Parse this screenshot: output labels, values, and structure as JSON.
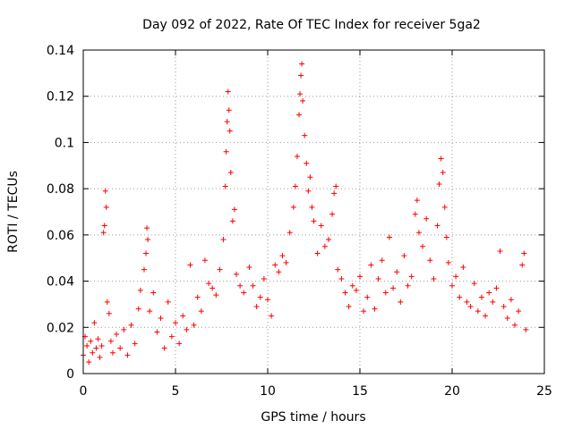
{
  "chart_data": {
    "type": "scatter",
    "title": "Day 092 of 2022, Rate Of TEC Index for receiver 5ga2",
    "xlabel": "GPS time / hours",
    "ylabel": "ROTI / TECUs",
    "xlim": [
      0,
      25
    ],
    "ylim": [
      0,
      0.14
    ],
    "x_ticks": [
      0,
      5,
      10,
      15,
      20,
      25
    ],
    "x_tick_labels": [
      "0",
      "5",
      "10",
      "15",
      "20",
      "25"
    ],
    "y_ticks": [
      0,
      0.02,
      0.04,
      0.06,
      0.08,
      0.1,
      0.12,
      0.14
    ],
    "y_tick_labels": [
      "0",
      "0.02",
      "0.04",
      "0.06",
      "0.08",
      "0.1",
      "0.12",
      "0.14"
    ],
    "grid": true,
    "marker": "+",
    "marker_color": "#ff0000",
    "series": [
      {
        "points": [
          [
            0.0,
            0.008
          ],
          [
            0.1,
            0.016
          ],
          [
            0.2,
            0.012
          ],
          [
            0.3,
            0.005
          ],
          [
            0.4,
            0.014
          ],
          [
            0.5,
            0.009
          ],
          [
            0.6,
            0.022
          ],
          [
            0.7,
            0.011
          ],
          [
            0.8,
            0.015
          ],
          [
            0.9,
            0.007
          ],
          [
            1.0,
            0.012
          ],
          [
            1.1,
            0.061
          ],
          [
            1.15,
            0.064
          ],
          [
            1.2,
            0.079
          ],
          [
            1.25,
            0.072
          ],
          [
            1.3,
            0.031
          ],
          [
            1.4,
            0.026
          ],
          [
            1.5,
            0.014
          ],
          [
            1.6,
            0.009
          ],
          [
            1.8,
            0.017
          ],
          [
            2.0,
            0.011
          ],
          [
            2.2,
            0.019
          ],
          [
            2.4,
            0.008
          ],
          [
            2.6,
            0.021
          ],
          [
            2.8,
            0.013
          ],
          [
            3.0,
            0.028
          ],
          [
            3.1,
            0.036
          ],
          [
            3.3,
            0.045
          ],
          [
            3.4,
            0.052
          ],
          [
            3.45,
            0.063
          ],
          [
            3.5,
            0.058
          ],
          [
            3.6,
            0.027
          ],
          [
            3.8,
            0.035
          ],
          [
            4.0,
            0.018
          ],
          [
            4.2,
            0.024
          ],
          [
            4.4,
            0.011
          ],
          [
            4.6,
            0.031
          ],
          [
            4.8,
            0.016
          ],
          [
            5.0,
            0.022
          ],
          [
            5.2,
            0.013
          ],
          [
            5.4,
            0.025
          ],
          [
            5.6,
            0.019
          ],
          [
            5.8,
            0.047
          ],
          [
            6.0,
            0.021
          ],
          [
            6.2,
            0.033
          ],
          [
            6.4,
            0.027
          ],
          [
            6.6,
            0.049
          ],
          [
            6.8,
            0.039
          ],
          [
            7.0,
            0.037
          ],
          [
            7.2,
            0.034
          ],
          [
            7.4,
            0.045
          ],
          [
            7.6,
            0.058
          ],
          [
            7.7,
            0.081
          ],
          [
            7.75,
            0.096
          ],
          [
            7.8,
            0.109
          ],
          [
            7.85,
            0.122
          ],
          [
            7.9,
            0.114
          ],
          [
            7.95,
            0.105
          ],
          [
            8.0,
            0.087
          ],
          [
            8.1,
            0.066
          ],
          [
            8.2,
            0.071
          ],
          [
            8.3,
            0.043
          ],
          [
            8.5,
            0.038
          ],
          [
            8.7,
            0.035
          ],
          [
            9.0,
            0.046
          ],
          [
            9.2,
            0.038
          ],
          [
            9.4,
            0.029
          ],
          [
            9.6,
            0.033
          ],
          [
            9.8,
            0.041
          ],
          [
            10.0,
            0.032
          ],
          [
            10.2,
            0.025
          ],
          [
            10.4,
            0.047
          ],
          [
            10.6,
            0.044
          ],
          [
            10.8,
            0.051
          ],
          [
            11.0,
            0.048
          ],
          [
            11.2,
            0.061
          ],
          [
            11.4,
            0.072
          ],
          [
            11.5,
            0.081
          ],
          [
            11.6,
            0.094
          ],
          [
            11.7,
            0.112
          ],
          [
            11.75,
            0.121
          ],
          [
            11.8,
            0.129
          ],
          [
            11.85,
            0.134
          ],
          [
            11.9,
            0.118
          ],
          [
            12.0,
            0.103
          ],
          [
            12.1,
            0.091
          ],
          [
            12.2,
            0.079
          ],
          [
            12.3,
            0.085
          ],
          [
            12.4,
            0.072
          ],
          [
            12.5,
            0.066
          ],
          [
            12.7,
            0.052
          ],
          [
            12.9,
            0.064
          ],
          [
            13.1,
            0.055
          ],
          [
            13.3,
            0.058
          ],
          [
            13.5,
            0.069
          ],
          [
            13.6,
            0.078
          ],
          [
            13.7,
            0.081
          ],
          [
            13.8,
            0.045
          ],
          [
            14.0,
            0.041
          ],
          [
            14.2,
            0.035
          ],
          [
            14.4,
            0.029
          ],
          [
            14.6,
            0.038
          ],
          [
            14.8,
            0.036
          ],
          [
            15.0,
            0.042
          ],
          [
            15.2,
            0.027
          ],
          [
            15.4,
            0.033
          ],
          [
            15.6,
            0.047
          ],
          [
            15.8,
            0.028
          ],
          [
            16.0,
            0.041
          ],
          [
            16.2,
            0.049
          ],
          [
            16.4,
            0.035
          ],
          [
            16.6,
            0.059
          ],
          [
            16.8,
            0.037
          ],
          [
            17.0,
            0.044
          ],
          [
            17.2,
            0.031
          ],
          [
            17.4,
            0.051
          ],
          [
            17.6,
            0.038
          ],
          [
            17.8,
            0.042
          ],
          [
            18.0,
            0.069
          ],
          [
            18.1,
            0.075
          ],
          [
            18.2,
            0.061
          ],
          [
            18.4,
            0.055
          ],
          [
            18.6,
            0.067
          ],
          [
            18.8,
            0.049
          ],
          [
            19.0,
            0.041
          ],
          [
            19.2,
            0.064
          ],
          [
            19.3,
            0.082
          ],
          [
            19.4,
            0.093
          ],
          [
            19.5,
            0.087
          ],
          [
            19.6,
            0.072
          ],
          [
            19.7,
            0.059
          ],
          [
            19.8,
            0.048
          ],
          [
            20.0,
            0.038
          ],
          [
            20.2,
            0.042
          ],
          [
            20.4,
            0.033
          ],
          [
            20.6,
            0.046
          ],
          [
            20.8,
            0.031
          ],
          [
            21.0,
            0.029
          ],
          [
            21.2,
            0.039
          ],
          [
            21.4,
            0.027
          ],
          [
            21.6,
            0.033
          ],
          [
            21.8,
            0.025
          ],
          [
            22.0,
            0.035
          ],
          [
            22.2,
            0.031
          ],
          [
            22.4,
            0.037
          ],
          [
            22.6,
            0.053
          ],
          [
            22.8,
            0.029
          ],
          [
            23.0,
            0.024
          ],
          [
            23.2,
            0.032
          ],
          [
            23.4,
            0.021
          ],
          [
            23.6,
            0.027
          ],
          [
            23.8,
            0.047
          ],
          [
            23.9,
            0.052
          ],
          [
            24.0,
            0.019
          ]
        ]
      }
    ]
  }
}
